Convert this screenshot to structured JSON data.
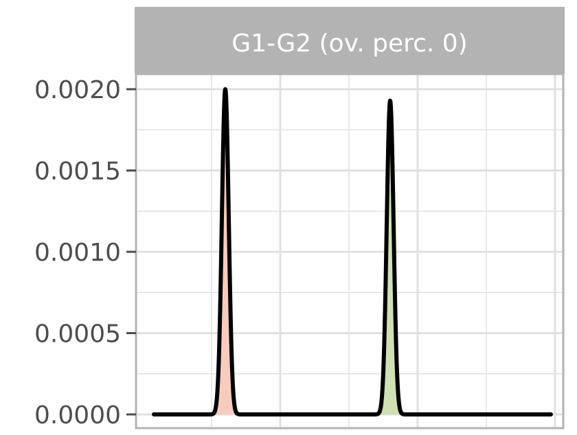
{
  "chart_data": {
    "type": "area",
    "facet_label": "G1-G2 (ov. perc. 0)",
    "xlabel": "",
    "ylabel": "",
    "xlim": [
      0,
      6
    ],
    "ylim": [
      0,
      0.00205
    ],
    "y_ticks": [
      0.0,
      0.0005,
      0.001,
      0.0015,
      0.002
    ],
    "y_tick_labels": [
      "0.0000",
      "0.0005",
      "0.0010",
      "0.0015",
      "0.0020"
    ],
    "x_major_gridlines": [
      2,
      4,
      6
    ],
    "x_minor_gridlines": [
      1,
      3,
      5
    ],
    "y_minor_gridlines": [
      0.00025,
      0.00075,
      0.00125,
      0.00175
    ],
    "grid": true,
    "x_range_curve": [
      0.16,
      5.94
    ],
    "series": [
      {
        "fill": "#f8cbbf",
        "peak_x": 1.2,
        "peak_y": 0.002,
        "sd": 0.05
      },
      {
        "fill": "#cfe0b5",
        "peak_x": 3.6,
        "peak_y": 0.00193,
        "sd": 0.05
      }
    ],
    "colors": {
      "strip_bg": "#b3b3b3",
      "panel_border": "#b3b3b3",
      "grid": "#e0e0e0",
      "curve": "#000000",
      "tick_text": "#4d4d4d"
    }
  }
}
